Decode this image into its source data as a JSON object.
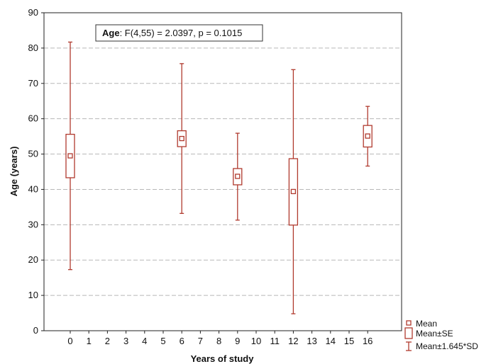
{
  "chart_data": {
    "type": "box",
    "annotation": {
      "label": "Age",
      "stat": "F(4,55) = 2.0397, p = 0.1015"
    },
    "xlabel": "Years of study",
    "ylabel": "Age (years)",
    "xlim": [
      -1,
      17
    ],
    "ylim": [
      0,
      90
    ],
    "x_ticks": [
      0,
      1,
      2,
      3,
      4,
      5,
      6,
      7,
      8,
      9,
      10,
      11,
      12,
      13,
      14,
      15,
      16
    ],
    "y_ticks": [
      0,
      10,
      20,
      30,
      40,
      50,
      60,
      70,
      80,
      90
    ],
    "grid": "horizontal-dashed",
    "legend_position": "bottom-right-outside",
    "legend": [
      "Mean",
      "Mean±SE",
      "Mean±1.645*SD"
    ],
    "color": "#b03a2e",
    "groups": [
      {
        "x": 0,
        "mean": 49.5,
        "se_low": 43.3,
        "se_high": 55.6,
        "sd_low": 17.3,
        "sd_high": 81.7
      },
      {
        "x": 6,
        "mean": 54.4,
        "se_low": 52.1,
        "se_high": 56.6,
        "sd_low": 33.2,
        "sd_high": 75.6
      },
      {
        "x": 9,
        "mean": 43.7,
        "se_low": 41.3,
        "se_high": 45.9,
        "sd_low": 31.3,
        "sd_high": 55.9
      },
      {
        "x": 12,
        "mean": 39.4,
        "se_low": 29.9,
        "se_high": 48.7,
        "sd_low": 4.8,
        "sd_high": 73.9
      },
      {
        "x": 16,
        "mean": 55.1,
        "se_low": 52.0,
        "se_high": 58.1,
        "sd_low": 46.6,
        "sd_high": 63.5
      }
    ]
  }
}
